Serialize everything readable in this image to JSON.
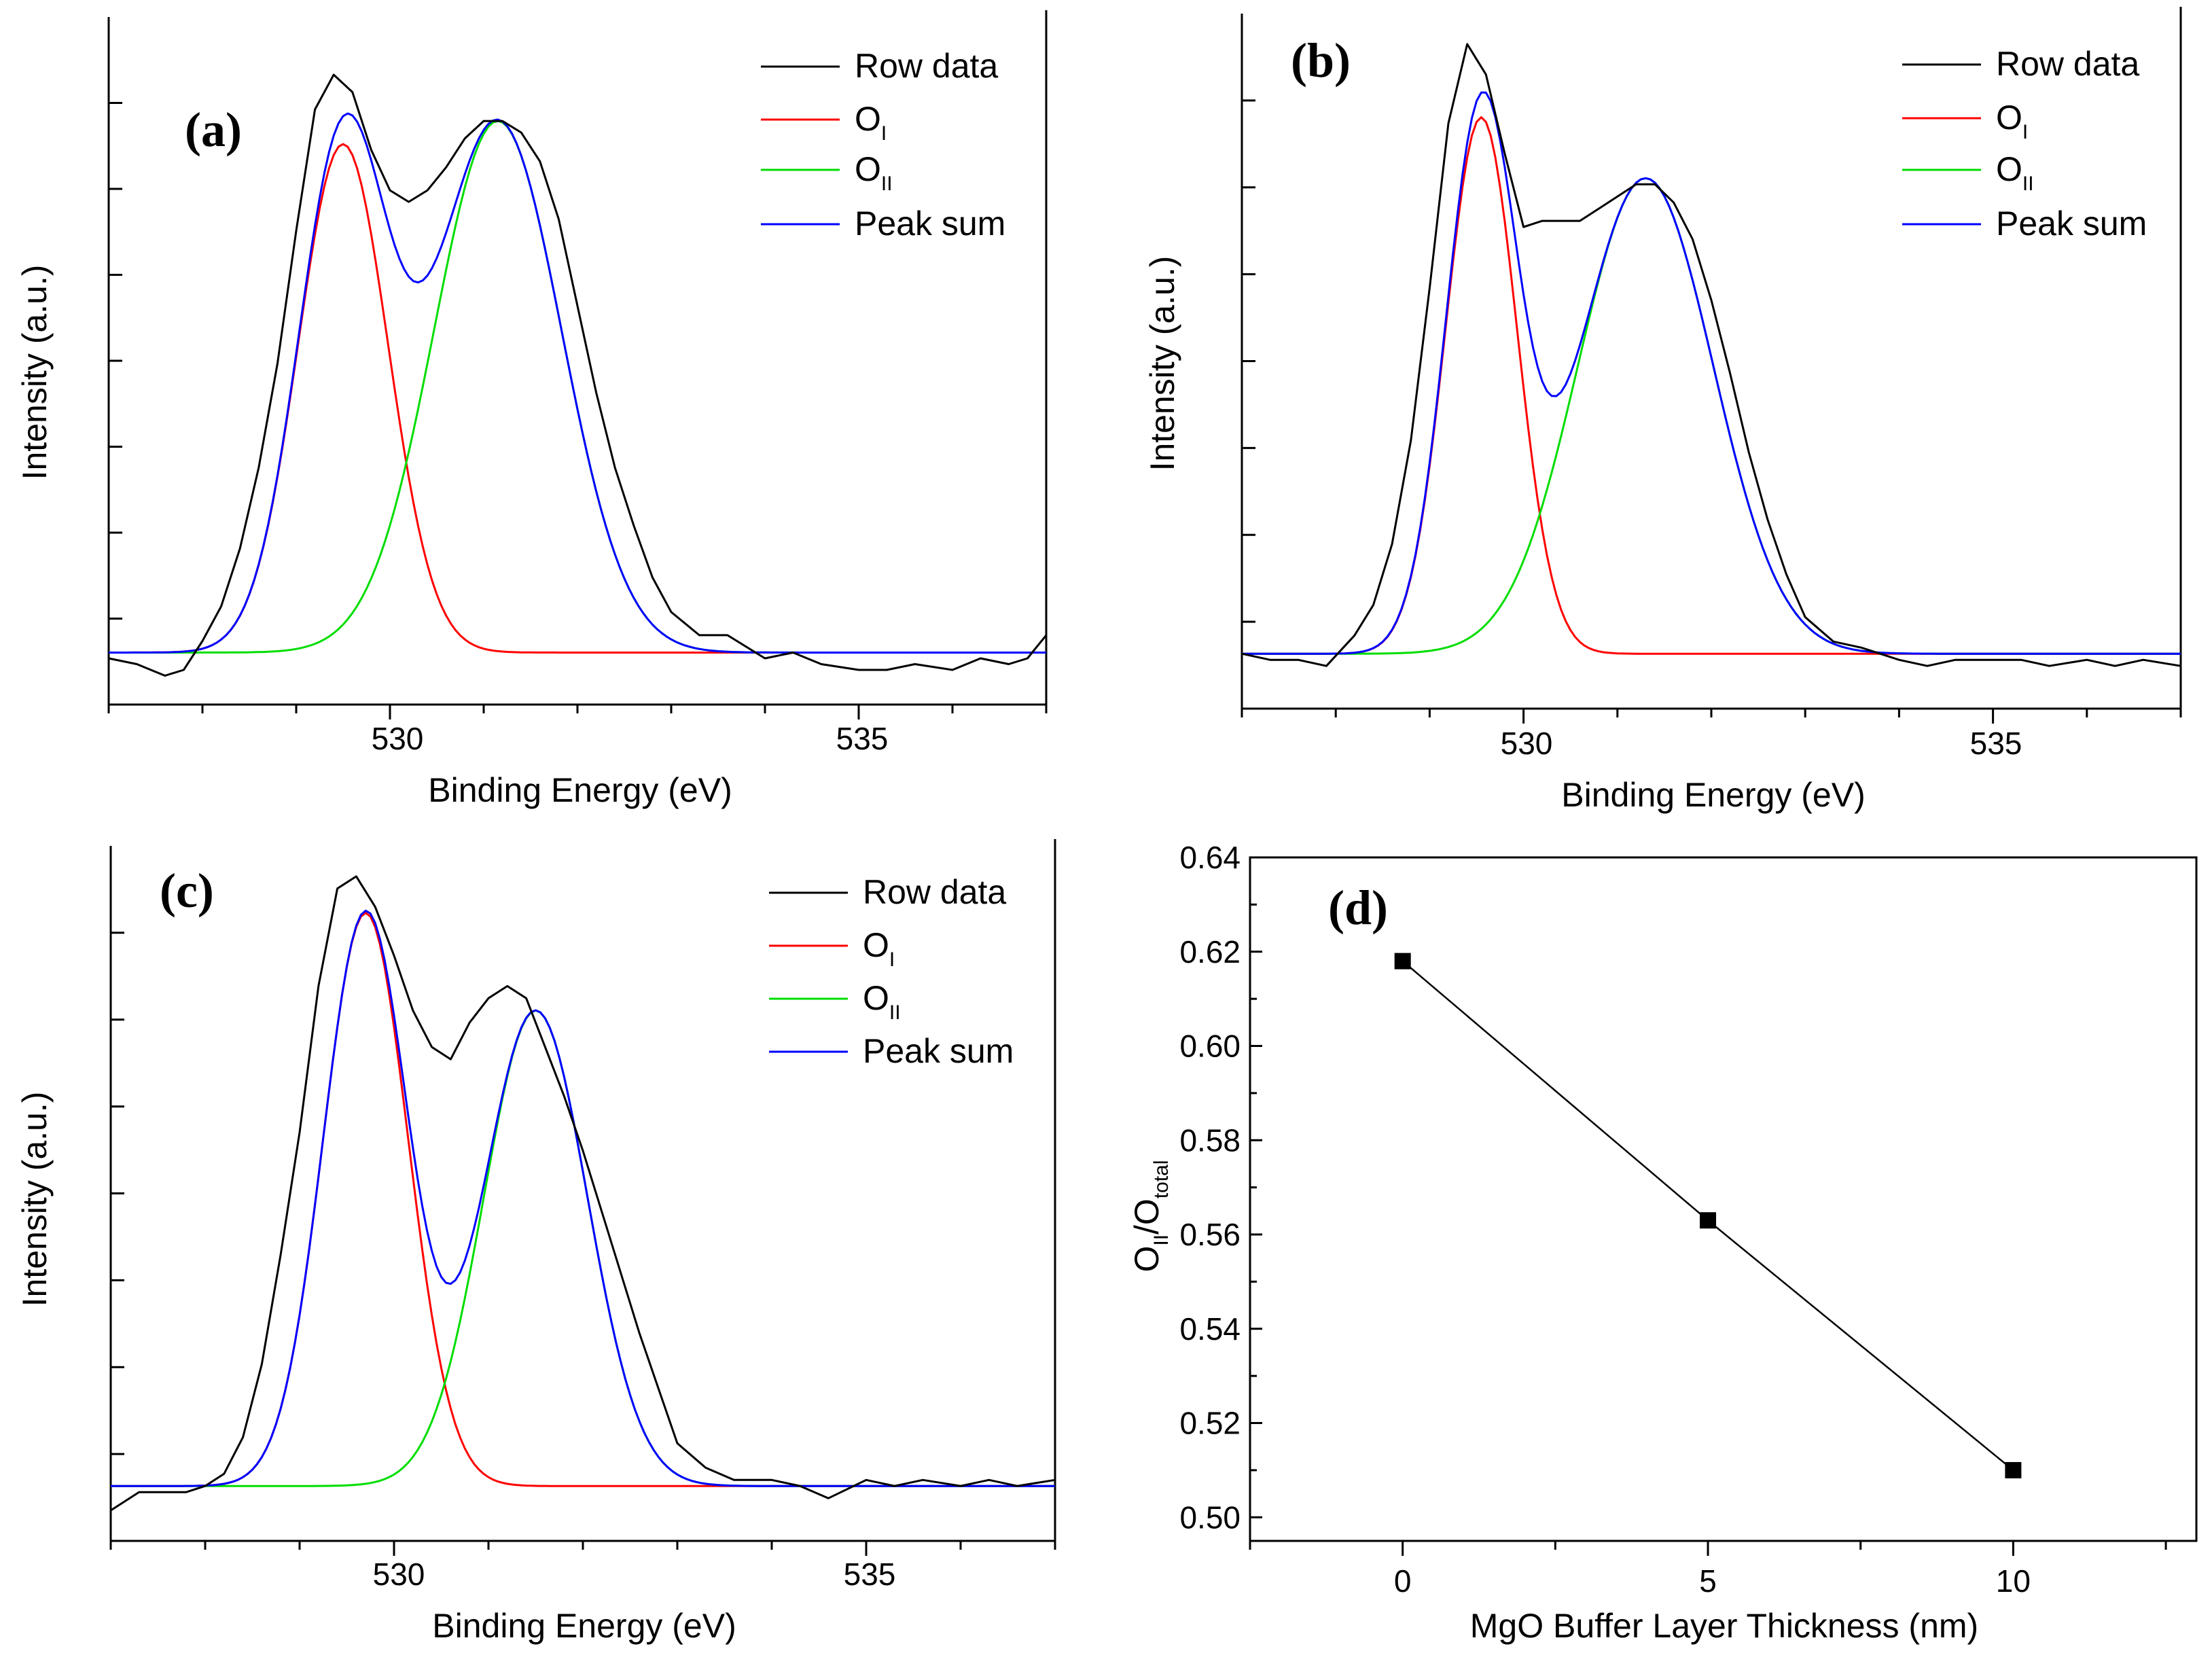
{
  "colors": {
    "raw": "#000000",
    "o1": "#ff0000",
    "o2": "#00dd00",
    "sum": "#0000ff"
  },
  "chart_data": [
    {
      "id": "a",
      "type": "line",
      "panel_label": "(a)",
      "xlabel": "Binding Energy (eV)",
      "ylabel": "Intensity (a.u.)",
      "xlim": [
        527.0,
        537.0
      ],
      "ylim": [
        -0.09,
        1.1
      ],
      "xticks": [
        "530",
        "535"
      ],
      "legend": {
        "position": "top-right",
        "entries": [
          {
            "key": "raw",
            "text": "Row data",
            "sub": ""
          },
          {
            "key": "o1",
            "text": "O",
            "sub": "I"
          },
          {
            "key": "o2",
            "text": "O",
            "sub": "II"
          },
          {
            "key": "sum",
            "text": "Peak sum",
            "sub": ""
          }
        ]
      },
      "components": {
        "o1": {
          "center": 529.5,
          "height": 0.88,
          "sigma": 0.48
        },
        "o2": {
          "center": 531.15,
          "height": 0.92,
          "sigma": 0.68
        }
      },
      "raw_x": [
        527.0,
        527.3,
        527.6,
        527.8,
        528.0,
        528.2,
        528.4,
        528.6,
        528.8,
        529.0,
        529.2,
        529.4,
        529.6,
        529.8,
        530.0,
        530.2,
        530.4,
        530.6,
        530.8,
        531.0,
        531.2,
        531.4,
        531.6,
        531.8,
        532.0,
        532.2,
        532.4,
        532.6,
        532.8,
        533.0,
        533.3,
        533.6,
        534.0,
        534.3,
        534.6,
        535.0,
        535.3,
        535.6,
        536.0,
        536.3,
        536.6,
        536.8,
        537.0
      ],
      "raw_y": [
        -0.01,
        -0.02,
        -0.04,
        -0.03,
        0.02,
        0.08,
        0.18,
        0.32,
        0.5,
        0.73,
        0.94,
        1.0,
        0.97,
        0.87,
        0.8,
        0.78,
        0.8,
        0.84,
        0.89,
        0.92,
        0.92,
        0.9,
        0.85,
        0.75,
        0.6,
        0.45,
        0.32,
        0.22,
        0.13,
        0.07,
        0.03,
        0.03,
        -0.01,
        0.0,
        -0.02,
        -0.03,
        -0.03,
        -0.02,
        -0.03,
        -0.01,
        -0.02,
        -0.01,
        0.03
      ]
    },
    {
      "id": "b",
      "type": "line",
      "panel_label": "(b)",
      "xlabel": "Binding Energy (eV)",
      "ylabel": "Intensity (a.u.)",
      "xlim": [
        527.0,
        537.0
      ],
      "ylim": [
        -0.09,
        1.05
      ],
      "xticks": [
        "530",
        "535"
      ],
      "legend": {
        "position": "top-right",
        "entries": [
          {
            "key": "raw",
            "text": "Row data",
            "sub": ""
          },
          {
            "key": "o1",
            "text": "O",
            "sub": "I"
          },
          {
            "key": "o2",
            "text": "O",
            "sub": "II"
          },
          {
            "key": "sum",
            "text": "Peak sum",
            "sub": ""
          }
        ]
      },
      "components": {
        "o1": {
          "center": 529.55,
          "height": 0.88,
          "sigma": 0.38
        },
        "o2": {
          "center": 531.3,
          "height": 0.78,
          "sigma": 0.72
        }
      },
      "raw_x": [
        527.0,
        527.3,
        527.6,
        527.9,
        528.2,
        528.4,
        528.6,
        528.8,
        529.0,
        529.2,
        529.4,
        529.6,
        529.8,
        530.0,
        530.2,
        530.4,
        530.6,
        530.8,
        531.0,
        531.2,
        531.4,
        531.6,
        531.8,
        532.0,
        532.2,
        532.4,
        532.6,
        532.8,
        533.0,
        533.3,
        533.6,
        534.0,
        534.3,
        534.6,
        535.0,
        535.3,
        535.6,
        536.0,
        536.3,
        536.6,
        537.0
      ],
      "raw_y": [
        0.0,
        -0.01,
        -0.01,
        -0.02,
        0.03,
        0.08,
        0.18,
        0.35,
        0.6,
        0.87,
        1.0,
        0.95,
        0.82,
        0.7,
        0.71,
        0.71,
        0.71,
        0.73,
        0.75,
        0.77,
        0.77,
        0.74,
        0.68,
        0.58,
        0.46,
        0.33,
        0.22,
        0.13,
        0.06,
        0.02,
        0.01,
        -0.01,
        -0.02,
        -0.01,
        -0.01,
        -0.01,
        -0.02,
        -0.01,
        -0.02,
        -0.01,
        -0.02
      ]
    },
    {
      "id": "c",
      "type": "line",
      "panel_label": "(c)",
      "xlabel": "Binding Energy (eV)",
      "ylabel": "Intensity (a.u.)",
      "xlim": [
        527.0,
        537.0
      ],
      "ylim": [
        -0.09,
        1.05
      ],
      "xticks": [
        "530",
        "535"
      ],
      "legend": {
        "position": "top-right",
        "entries": [
          {
            "key": "raw",
            "text": "Row data",
            "sub": ""
          },
          {
            "key": "o1",
            "text": "O",
            "sub": "I"
          },
          {
            "key": "o2",
            "text": "O",
            "sub": "II"
          },
          {
            "key": "sum",
            "text": "Peak sum",
            "sub": ""
          }
        ]
      },
      "components": {
        "o1": {
          "center": 529.7,
          "height": 0.94,
          "sigma": 0.45
        },
        "o2": {
          "center": 531.5,
          "height": 0.78,
          "sigma": 0.55
        }
      },
      "raw_x": [
        527.0,
        527.3,
        527.6,
        527.8,
        528.0,
        528.2,
        528.4,
        528.6,
        528.8,
        529.0,
        529.2,
        529.4,
        529.6,
        529.8,
        530.0,
        530.2,
        530.4,
        530.6,
        530.8,
        531.0,
        531.2,
        531.4,
        531.6,
        531.8,
        532.0,
        532.2,
        532.4,
        532.6,
        532.8,
        533.0,
        533.3,
        533.6,
        534.0,
        534.3,
        534.6,
        535.0,
        535.3,
        535.6,
        536.0,
        536.3,
        536.6,
        537.0
      ],
      "raw_y": [
        -0.04,
        -0.01,
        -0.01,
        -0.01,
        0.0,
        0.02,
        0.08,
        0.2,
        0.38,
        0.58,
        0.82,
        0.98,
        1.0,
        0.95,
        0.87,
        0.78,
        0.72,
        0.7,
        0.76,
        0.8,
        0.82,
        0.8,
        0.72,
        0.64,
        0.55,
        0.45,
        0.35,
        0.25,
        0.16,
        0.07,
        0.03,
        0.01,
        0.01,
        0.0,
        -0.02,
        0.01,
        0.0,
        0.01,
        0.0,
        0.01,
        0.0,
        0.01
      ]
    },
    {
      "id": "d",
      "type": "line",
      "panel_label": "(d)",
      "xlabel": "MgO Buffer Layer Thickness (nm)",
      "ylabel_main": "O",
      "ylabel_sub1": "II",
      "ylabel_mid": "/O",
      "ylabel_sub2": "total",
      "xlim": [
        -2.5,
        13.0
      ],
      "ylim": [
        0.495,
        0.64
      ],
      "xticks": [
        0,
        5,
        10
      ],
      "xtick_labels": [
        "0",
        "5",
        "10"
      ],
      "yticks": [
        0.5,
        0.52,
        0.54,
        0.56,
        0.58,
        0.6,
        0.62,
        0.64
      ],
      "ytick_labels": [
        "0.50",
        "0.52",
        "0.54",
        "0.56",
        "0.58",
        "0.60",
        "0.62",
        "0.64"
      ],
      "x": [
        0,
        5,
        10
      ],
      "y": [
        0.618,
        0.563,
        0.51
      ]
    }
  ]
}
